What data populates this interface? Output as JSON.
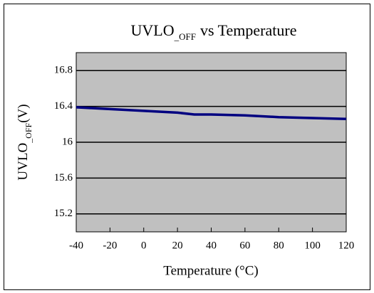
{
  "chart_data": {
    "type": "line",
    "title": [
      "UVLO",
      "_OFF",
      "vs Temperature"
    ],
    "y_label": [
      "UVLO",
      "_OFF",
      "(V)"
    ],
    "x_label": "Temperature (°C)",
    "x": [
      -40,
      -20,
      0,
      20,
      30,
      40,
      60,
      80,
      100,
      120
    ],
    "series": [
      {
        "name": "UVLO_OFF",
        "color": "#000080",
        "values": [
          16.39,
          16.37,
          16.35,
          16.33,
          16.31,
          16.31,
          16.3,
          16.28,
          16.27,
          16.26
        ]
      }
    ],
    "xlim": [
      -40,
      120
    ],
    "xticks": [
      -40,
      -20,
      0,
      20,
      40,
      60,
      80,
      100,
      120
    ],
    "ylim": [
      15.0,
      17.0
    ],
    "yticks": [
      15.2,
      15.6,
      16.0,
      16.4,
      16.8
    ],
    "grid": true,
    "plot_background": "#c0c0c0"
  }
}
